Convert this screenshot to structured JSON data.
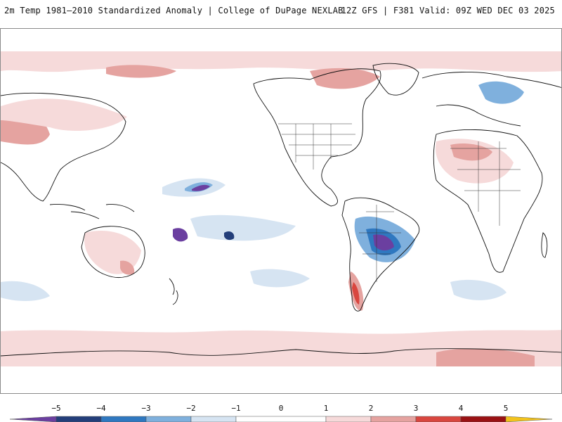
{
  "header": {
    "title": "2m Temp 1981–2010 Standardized Anomaly | College of DuPage NEXLAB",
    "run_info": "12Z GFS | F381 Valid: 09Z WED DEC 03 2025"
  },
  "map": {
    "projection": "equirectangular, Pacific-centered",
    "field": "2m temperature standardized anomaly"
  },
  "colorbar": {
    "tick_labels": [
      "−5",
      "−4",
      "−3",
      "−2",
      "−1",
      "0",
      "1",
      "2",
      "3",
      "4",
      "5"
    ],
    "colors": {
      "lt_minus5": "#6b3fa0",
      "minus5_minus4": "#233e7a",
      "minus4_minus3": "#2f78c0",
      "minus3_minus2": "#7fb0dd",
      "minus2_minus1": "#d6e4f2",
      "minus1_plus1": "#ffffff",
      "plus1_plus2": "#f6dada",
      "plus2_plus3": "#e5a3a0",
      "plus3_plus4": "#d9463f",
      "plus4_plus5": "#9a1114",
      "gt_plus5": "#f2c31d"
    }
  }
}
